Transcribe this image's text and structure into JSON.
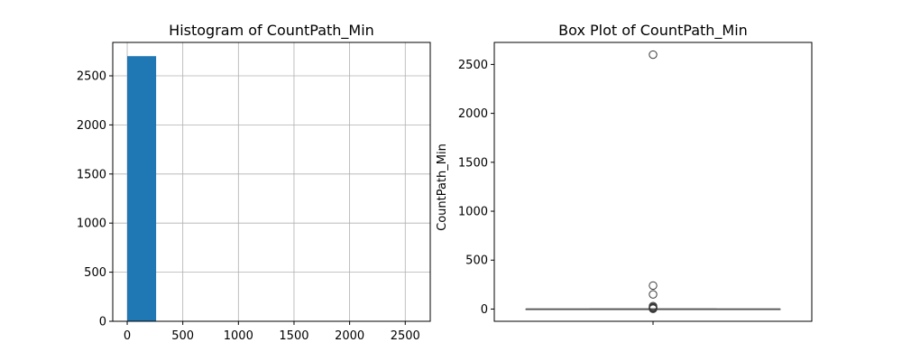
{
  "chart_data": [
    {
      "type": "bar",
      "title": "Histogram of CountPath_Min",
      "xlabel": "",
      "ylabel": "",
      "grid": true,
      "xlim": [
        -130,
        2725
      ],
      "ylim": [
        0,
        2840
      ],
      "xticks": [
        0,
        500,
        1000,
        1500,
        2000,
        2500
      ],
      "yticks": [
        0,
        500,
        1000,
        1500,
        2000,
        2500
      ],
      "bins": [
        {
          "start": 0,
          "end": 260,
          "count": 2700
        },
        {
          "start": 260,
          "end": 520,
          "count": 0
        },
        {
          "start": 520,
          "end": 780,
          "count": 0
        },
        {
          "start": 780,
          "end": 1040,
          "count": 0
        },
        {
          "start": 1040,
          "end": 1300,
          "count": 0
        },
        {
          "start": 1300,
          "end": 1560,
          "count": 0
        },
        {
          "start": 1560,
          "end": 1820,
          "count": 0
        },
        {
          "start": 1820,
          "end": 2080,
          "count": 0
        },
        {
          "start": 2080,
          "end": 2340,
          "count": 0
        },
        {
          "start": 2340,
          "end": 2600,
          "count": 1
        }
      ],
      "color": "#1f77b4"
    },
    {
      "type": "box",
      "title": "Box Plot of CountPath_Min",
      "xlabel": "",
      "ylabel": "CountPath_Min",
      "grid": false,
      "ylim": [
        -125,
        2725
      ],
      "yticks": [
        0,
        500,
        1000,
        1500,
        2000,
        2500
      ],
      "box": {
        "min": 0,
        "q1": 0,
        "median": 0,
        "q3": 0,
        "max": 0
      },
      "outliers": [
        2600,
        240,
        150,
        30,
        20,
        15,
        10,
        8,
        5,
        3
      ],
      "color": "#555555"
    }
  ]
}
